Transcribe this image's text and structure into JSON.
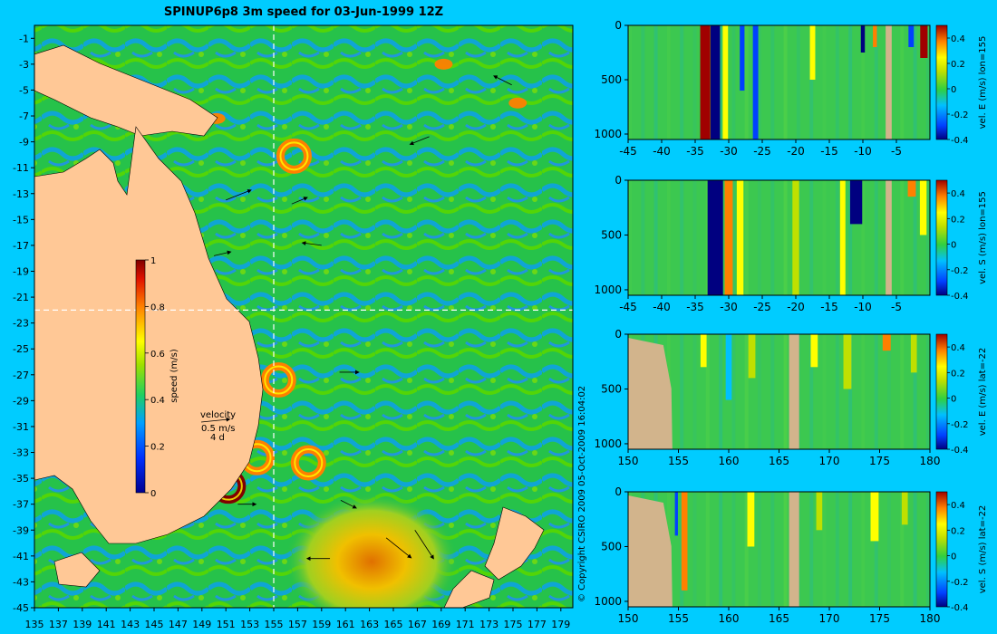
{
  "chart_data": [
    {
      "type": "heatmap",
      "title": "SPINUP6p8 3m speed for 03-Jun-1999 12Z",
      "xlabel": "",
      "ylabel": "",
      "x_ticks": [
        135,
        137,
        139,
        141,
        143,
        145,
        147,
        149,
        151,
        153,
        155,
        157,
        159,
        161,
        163,
        165,
        167,
        169,
        171,
        173,
        175,
        177,
        179
      ],
      "x_tick_labels": [
        "135",
        "137",
        "139",
        "141",
        "143",
        "145",
        "147",
        "149",
        "151",
        "153",
        "155",
        "157",
        "159",
        "161",
        "163",
        "165",
        "167",
        "169",
        "171",
        "173",
        "175",
        "177",
        "179"
      ],
      "xlim": [
        135,
        180
      ],
      "y_ticks": [
        -1,
        -3,
        -5,
        -7,
        -9,
        -11,
        -13,
        -15,
        -17,
        -19,
        -21,
        -23,
        -25,
        -27,
        -29,
        -31,
        -33,
        -35,
        -37,
        -39,
        -41,
        -43,
        -45
      ],
      "y_tick_labels": [
        "-1",
        "-3",
        "-5",
        "-7",
        "-9",
        "-11",
        "-13",
        "-15",
        "-17",
        "-19",
        "-21",
        "-23",
        "-25",
        "-27",
        "-29",
        "-31",
        "-33",
        "-35",
        "-37",
        "-39",
        "-41",
        "-43",
        "-45"
      ],
      "ylim": [
        -45,
        0
      ],
      "section_lon": 155,
      "section_lat": -22,
      "colorbar": {
        "label": "speed (m/s)",
        "range": [
          0,
          1
        ],
        "ticks": [
          0,
          0.2,
          0.4,
          0.6,
          0.8,
          1
        ],
        "tick_labels": [
          "0",
          "0.2",
          "0.4",
          "0.6",
          "0.8",
          "1"
        ]
      },
      "legend": {
        "title": "velocity",
        "scale_speed": "0.5 m/s",
        "scale_time": "4 d"
      },
      "features": [
        {
          "kind": "eddy",
          "lon": 153.6,
          "lat": -33.4,
          "speed": 0.9
        },
        {
          "kind": "eddy",
          "lon": 157.9,
          "lat": -33.8,
          "speed": 0.85
        },
        {
          "kind": "eddy",
          "lon": 151.2,
          "lat": -35.6,
          "speed": 1.0
        },
        {
          "kind": "eddy",
          "lon": 155.4,
          "lat": -27.4,
          "speed": 0.9
        },
        {
          "kind": "eddy",
          "lon": 156.7,
          "lat": -10.1,
          "speed": 0.8
        },
        {
          "kind": "jet",
          "lon": 150.2,
          "lat": -7.2,
          "speed": 0.9
        },
        {
          "kind": "jet",
          "lon": 175.4,
          "lat": -6.0,
          "speed": 0.9
        },
        {
          "kind": "jet",
          "lon": 169.2,
          "lat": -3.0,
          "speed": 0.8
        }
      ],
      "arrows": [
        {
          "lon": 151,
          "lat": -13.5,
          "dlon": 2.0,
          "dlat": 0.8
        },
        {
          "lon": 159,
          "lat": -17.0,
          "dlon": -1.5,
          "dlat": 0.2
        },
        {
          "lon": 150,
          "lat": -17.8,
          "dlon": 1.3,
          "dlat": 0.3
        },
        {
          "lon": 152,
          "lat": -37.0,
          "dlon": 1.4,
          "dlat": 0.0
        },
        {
          "lon": 166.8,
          "lat": -39.0,
          "dlon": 1.5,
          "dlat": -2.3
        },
        {
          "lon": 164.4,
          "lat": -39.6,
          "dlon": 2.0,
          "dlat": -1.6
        },
        {
          "lon": 159.7,
          "lat": -41.2,
          "dlon": -1.8,
          "dlat": 0.0
        },
        {
          "lon": 174.9,
          "lat": -4.6,
          "dlon": -1.4,
          "dlat": 0.7
        },
        {
          "lon": 160.5,
          "lat": -26.8,
          "dlon": 1.5,
          "dlat": 0.0
        },
        {
          "lon": 168.0,
          "lat": -8.6,
          "dlon": -1.5,
          "dlat": -0.6
        },
        {
          "lon": 156.5,
          "lat": -13.8,
          "dlon": 1.2,
          "dlat": 0.5
        },
        {
          "lon": 160.6,
          "lat": -36.7,
          "dlon": 1.2,
          "dlat": -0.6
        }
      ],
      "copyright": "© Copyright CSIRO 2009   05-Oct-2009 16:04:02"
    },
    {
      "type": "heatmap",
      "title": "",
      "xlabel": "",
      "ylabel": "",
      "x_ticks": [
        -45,
        -40,
        -35,
        -30,
        -25,
        -20,
        -15,
        -10,
        -5
      ],
      "x_tick_labels": [
        "-45",
        "-40",
        "-35",
        "-30",
        "-25",
        "-20",
        "-15",
        "-10",
        "-5"
      ],
      "xlim": [
        -45,
        0
      ],
      "y_ticks": [
        0,
        500,
        1000
      ],
      "y_tick_labels": [
        "0",
        "500",
        "1000"
      ],
      "ylim": [
        1050,
        0
      ],
      "colorbar": {
        "label": "vel. E (m/s) lon=155",
        "range": [
          -0.4,
          0.5
        ],
        "ticks": [
          -0.4,
          -0.2,
          0,
          0.2,
          0.4
        ],
        "tick_labels": [
          "-0.4",
          "-0.2",
          "0",
          "0.2",
          "0.4"
        ]
      },
      "land": [
        [
          -6.6,
          -5.7
        ]
      ],
      "features": [
        {
          "x": -33.5,
          "w": 1.5,
          "depth": 1050,
          "value": 0.5
        },
        {
          "x": -32.0,
          "w": 1.4,
          "depth": 1050,
          "value": -0.4
        },
        {
          "x": -30.5,
          "w": 0.8,
          "depth": 1050,
          "value": 0.3
        },
        {
          "x": -28.0,
          "w": 0.7,
          "depth": 600,
          "value": -0.15
        },
        {
          "x": -26.0,
          "w": 0.8,
          "depth": 1050,
          "value": -0.2
        },
        {
          "x": -17.5,
          "w": 0.8,
          "depth": 500,
          "value": 0.25
        },
        {
          "x": -10.0,
          "w": 0.6,
          "depth": 250,
          "value": -0.3
        },
        {
          "x": -8.2,
          "w": 0.6,
          "depth": 200,
          "value": 0.45
        },
        {
          "x": -0.9,
          "w": 1.1,
          "depth": 300,
          "value": 0.5
        },
        {
          "x": -2.8,
          "w": 0.8,
          "depth": 200,
          "value": -0.15
        }
      ]
    },
    {
      "type": "heatmap",
      "title": "",
      "xlabel": "",
      "ylabel": "",
      "x_ticks": [
        -45,
        -40,
        -35,
        -30,
        -25,
        -20,
        -15,
        -10,
        -5
      ],
      "x_tick_labels": [
        "-45",
        "-40",
        "-35",
        "-30",
        "-25",
        "-20",
        "-15",
        "-10",
        "-5"
      ],
      "xlim": [
        -45,
        0
      ],
      "y_ticks": [
        0,
        500,
        1000
      ],
      "y_tick_labels": [
        "0",
        "500",
        "1000"
      ],
      "ylim": [
        1050,
        0
      ],
      "colorbar": {
        "label": "vel. S (m/s) lon=155",
        "range": [
          -0.4,
          0.5
        ],
        "ticks": [
          -0.4,
          -0.2,
          0,
          0.2,
          0.4
        ],
        "tick_labels": [
          "-0.4",
          "-0.2",
          "0",
          "0.2",
          "0.4"
        ]
      },
      "land": [
        [
          -6.6,
          -5.7
        ]
      ],
      "features": [
        {
          "x": -32.0,
          "w": 2.3,
          "depth": 1050,
          "value": -0.4
        },
        {
          "x": -30.0,
          "w": 1.2,
          "depth": 1050,
          "value": 0.4
        },
        {
          "x": -28.3,
          "w": 1.0,
          "depth": 1050,
          "value": 0.25
        },
        {
          "x": -11.0,
          "w": 1.8,
          "depth": 400,
          "value": -0.4
        },
        {
          "x": -13.0,
          "w": 0.8,
          "depth": 1050,
          "value": 0.3
        },
        {
          "x": -2.7,
          "w": 1.2,
          "depth": 150,
          "value": 0.45
        },
        {
          "x": -1.0,
          "w": 1.0,
          "depth": 500,
          "value": 0.35
        },
        {
          "x": -20.0,
          "w": 1.0,
          "depth": 1050,
          "value": 0.15
        }
      ]
    },
    {
      "type": "heatmap",
      "title": "",
      "xlabel": "",
      "ylabel": "",
      "x_ticks": [
        150,
        155,
        160,
        165,
        170,
        175,
        180
      ],
      "x_tick_labels": [
        "150",
        "155",
        "160",
        "165",
        "170",
        "175",
        "180"
      ],
      "xlim": [
        150,
        180
      ],
      "y_ticks": [
        0,
        500,
        1000
      ],
      "y_tick_labels": [
        "0",
        "500",
        "1000"
      ],
      "ylim": [
        1050,
        0
      ],
      "colorbar": {
        "label": "vel. E (m/s) lat=-22",
        "range": [
          -0.4,
          0.5
        ],
        "ticks": [
          -0.4,
          -0.2,
          0,
          0.2,
          0.4
        ],
        "tick_labels": [
          "-0.4",
          "-0.2",
          "0",
          "0.2",
          "0.4"
        ]
      },
      "land": [
        [
          166.0,
          167.0
        ]
      ],
      "features": [
        {
          "x": 157.5,
          "w": 0.6,
          "depth": 300,
          "value": 0.3
        },
        {
          "x": 162.3,
          "w": 0.7,
          "depth": 400,
          "value": 0.2
        },
        {
          "x": 168.5,
          "w": 0.7,
          "depth": 300,
          "value": 0.25
        },
        {
          "x": 175.7,
          "w": 0.8,
          "depth": 150,
          "value": 0.4
        },
        {
          "x": 160.0,
          "w": 0.6,
          "depth": 600,
          "value": -0.1
        },
        {
          "x": 171.8,
          "w": 0.8,
          "depth": 500,
          "value": 0.15
        },
        {
          "x": 178.4,
          "w": 0.6,
          "depth": 350,
          "value": 0.2
        }
      ]
    },
    {
      "type": "heatmap",
      "title": "",
      "xlabel": "",
      "ylabel": "",
      "x_ticks": [
        150,
        155,
        160,
        165,
        170,
        175,
        180
      ],
      "x_tick_labels": [
        "150",
        "155",
        "160",
        "165",
        "170",
        "175",
        "180"
      ],
      "xlim": [
        150,
        180
      ],
      "y_ticks": [
        0,
        500,
        1000
      ],
      "y_tick_labels": [
        "0",
        "500",
        "1000"
      ],
      "ylim": [
        1050,
        0
      ],
      "colorbar": {
        "label": "vel. S (m/s) lat=-22",
        "range": [
          -0.4,
          0.5
        ],
        "ticks": [
          -0.4,
          -0.2,
          0,
          0.2,
          0.4
        ],
        "tick_labels": [
          "-0.4",
          "-0.2",
          "0",
          "0.2",
          "0.4"
        ]
      },
      "land": [
        [
          166.0,
          167.0
        ]
      ],
      "features": [
        {
          "x": 155.6,
          "w": 0.6,
          "depth": 900,
          "value": 0.4
        },
        {
          "x": 154.8,
          "w": 0.3,
          "depth": 400,
          "value": -0.15
        },
        {
          "x": 162.2,
          "w": 0.7,
          "depth": 500,
          "value": 0.25
        },
        {
          "x": 169.0,
          "w": 0.6,
          "depth": 350,
          "value": 0.2
        },
        {
          "x": 174.5,
          "w": 0.8,
          "depth": 450,
          "value": 0.3
        },
        {
          "x": 177.5,
          "w": 0.6,
          "depth": 300,
          "value": 0.2
        }
      ]
    }
  ]
}
